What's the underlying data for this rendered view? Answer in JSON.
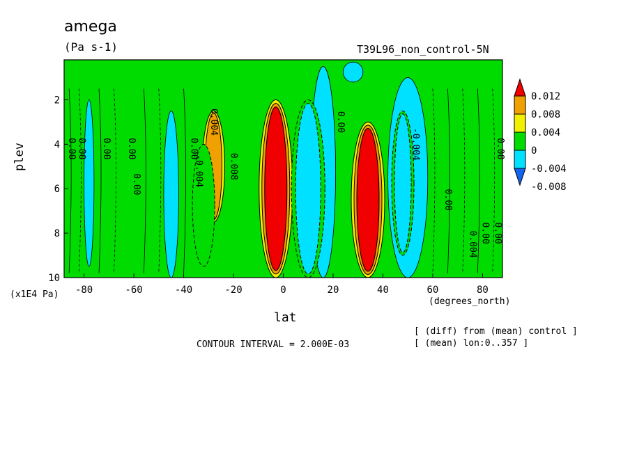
{
  "chart_data": {
    "type": "heatmap",
    "title": "amega",
    "units_label": "(Pa s-1)",
    "dataset_label": "T39L96_non_control-5N",
    "xlabel": "lat",
    "x_units": "(degrees_north)",
    "ylabel": "plev",
    "y_units": "(x1E4 Pa)",
    "xlim": [
      -88,
      88
    ],
    "ylim": [
      10,
      0.2
    ],
    "x_ticks": [
      -80,
      -60,
      -40,
      -20,
      0,
      20,
      40,
      60,
      80
    ],
    "x_tick_labels": [
      "-80",
      "-60",
      "-40",
      "-20",
      "0",
      "20",
      "40",
      "60",
      "80"
    ],
    "y_ticks": [
      2,
      4,
      6,
      8,
      10
    ],
    "y_tick_labels": [
      "2",
      "4",
      "6",
      "8",
      "10"
    ],
    "contour_interval_text": "CONTOUR INTERVAL = 2.000E-03",
    "notes": [
      "[ (diff) from (mean) control ]",
      "[ (mean) lon:0..357 ]"
    ],
    "colorbar": {
      "levels": [
        -0.008,
        -0.004,
        0,
        0.004,
        0.008,
        0.012
      ],
      "level_labels": [
        "-0.008",
        "-0.004",
        "0",
        "0.004",
        "0.008",
        "0.012"
      ],
      "colors": [
        "#1464f0",
        "#00e1ff",
        "#00dc00",
        "#f0f000",
        "#f0a000",
        "#f00000"
      ],
      "extend": "both"
    },
    "features": [
      {
        "lat": -28,
        "plev_top": 2.5,
        "plev_bottom": 7.5,
        "value": 0.008
      },
      {
        "lat": -32,
        "plev_top": 4.0,
        "plev_bottom": 9.5,
        "value": -0.006
      },
      {
        "lat": -3,
        "plev_top": 2.0,
        "plev_bottom": 10.0,
        "value": 0.012
      },
      {
        "lat": 10,
        "plev_top": 2.0,
        "plev_bottom": 10.0,
        "value": -0.01
      },
      {
        "lat": 34,
        "plev_top": 3.0,
        "plev_bottom": 10.0,
        "value": 0.012
      },
      {
        "lat": 48,
        "plev_top": 2.5,
        "plev_bottom": 9.0,
        "value": -0.008
      }
    ],
    "contour_labels": [
      {
        "text": "0.00",
        "lat": -86,
        "plev": 4.2
      },
      {
        "text": "0.00",
        "lat": -82,
        "plev": 4.2
      },
      {
        "text": "0.00",
        "lat": -72,
        "plev": 4.2
      },
      {
        "text": "0.00",
        "lat": -62,
        "plev": 4.2
      },
      {
        "text": "0.00",
        "lat": -60,
        "plev": 5.8
      },
      {
        "text": "0.00",
        "lat": -37,
        "plev": 4.2
      },
      {
        "text": "-0.004",
        "lat": -35,
        "plev": 5.2
      },
      {
        "text": "0.008",
        "lat": -21,
        "plev": 5.0
      },
      {
        "text": "0.004",
        "lat": -29,
        "plev": 3.0
      },
      {
        "text": "0.00",
        "lat": 22,
        "plev": 3.0
      },
      {
        "text": "-0.004",
        "lat": 52,
        "plev": 4.0
      },
      {
        "text": "0.00",
        "lat": 65,
        "plev": 6.5
      },
      {
        "text": "0.00",
        "lat": 80,
        "plev": 8.0
      },
      {
        "text": "0.004",
        "lat": 75,
        "plev": 8.5
      },
      {
        "text": "0.00",
        "lat": 86,
        "plev": 4.2
      },
      {
        "text": "0.00",
        "lat": 85,
        "plev": 8.0
      }
    ]
  }
}
